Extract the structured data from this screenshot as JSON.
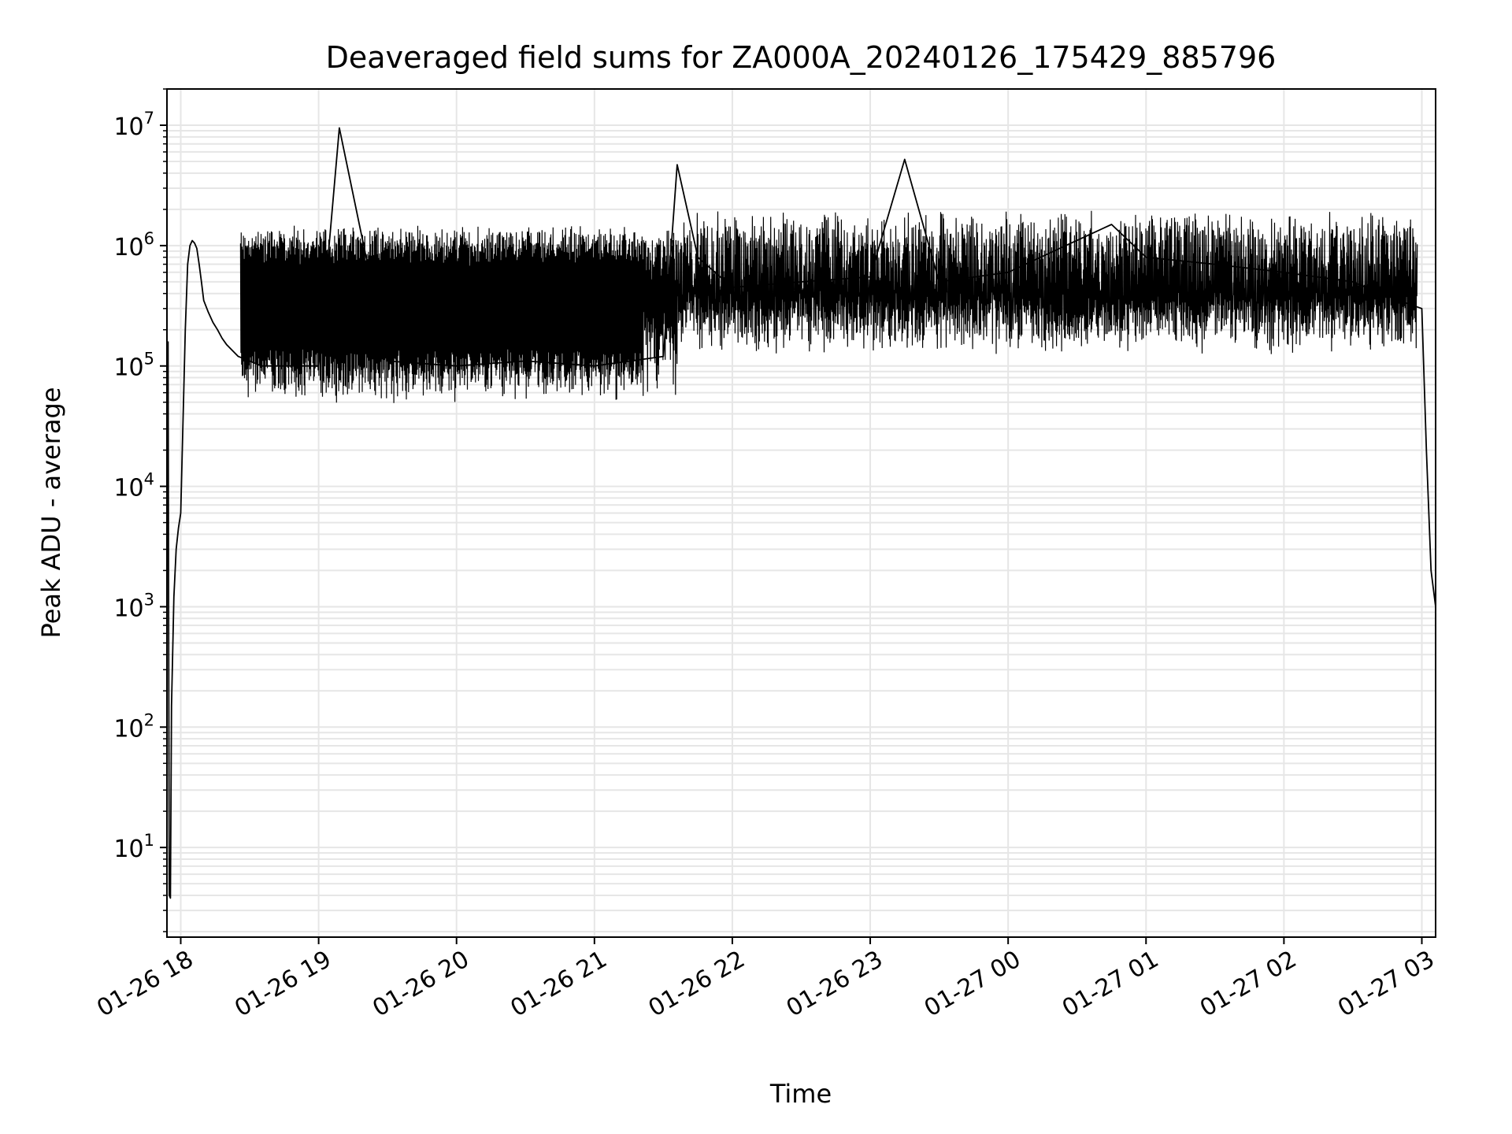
{
  "chart_data": {
    "type": "line",
    "title": "Deaveraged field sums for ZA000A_20240126_175429_885796",
    "xlabel": "Time",
    "ylabel": "Peak ADU - average",
    "yscale": "log",
    "xlim": [
      "2024-01-26 17:54",
      "2024-01-27 03:06"
    ],
    "ylim": [
      1.8,
      20000000.0
    ],
    "grid": true,
    "line_color": "#000000",
    "grid_color": "#e6e6e6",
    "x_ticks": [
      {
        "value": "2024-01-26 18:00",
        "label": "01-26 18"
      },
      {
        "value": "2024-01-26 19:00",
        "label": "01-26 19"
      },
      {
        "value": "2024-01-26 20:00",
        "label": "01-26 20"
      },
      {
        "value": "2024-01-26 21:00",
        "label": "01-26 21"
      },
      {
        "value": "2024-01-26 22:00",
        "label": "01-26 22"
      },
      {
        "value": "2024-01-26 23:00",
        "label": "01-26 23"
      },
      {
        "value": "2024-01-27 00:00",
        "label": "01-27 00"
      },
      {
        "value": "2024-01-27 01:00",
        "label": "01-27 01"
      },
      {
        "value": "2024-01-27 02:00",
        "label": "01-27 02"
      },
      {
        "value": "2024-01-27 03:00",
        "label": "01-27 03"
      }
    ],
    "y_ticks": [
      {
        "value": 10,
        "base": "10",
        "exp": "1"
      },
      {
        "value": 100,
        "base": "10",
        "exp": "2"
      },
      {
        "value": 1000,
        "base": "10",
        "exp": "3"
      },
      {
        "value": 10000,
        "base": "10",
        "exp": "4"
      },
      {
        "value": 100000,
        "base": "10",
        "exp": "5"
      },
      {
        "value": 1000000,
        "base": "10",
        "exp": "6"
      },
      {
        "value": 10000000,
        "base": "10",
        "exp": "7"
      }
    ],
    "series": [
      {
        "x": [
          "2024-01-26 17:54:29",
          "2024-01-26 17:55",
          "2024-01-26 17:55:30",
          "2024-01-26 17:56",
          "2024-01-26 17:57",
          "2024-01-26 17:58",
          "2024-01-26 17:59",
          "2024-01-26 18:00",
          "2024-01-26 18:02",
          "2024-01-26 18:03",
          "2024-01-26 18:04",
          "2024-01-26 18:05",
          "2024-01-26 18:06",
          "2024-01-26 18:07",
          "2024-01-26 18:08",
          "2024-01-26 18:09",
          "2024-01-26 18:10",
          "2024-01-26 18:12",
          "2024-01-26 18:14",
          "2024-01-26 18:16",
          "2024-01-26 18:18",
          "2024-01-26 18:20",
          "2024-01-26 18:25",
          "2024-01-26 18:30",
          "2024-01-26 18:35",
          "2024-01-26 19:00",
          "2024-01-26 19:09",
          "2024-01-26 19:30",
          "2024-01-26 20:00",
          "2024-01-26 20:30",
          "2024-01-26 21:00",
          "2024-01-26 21:30",
          "2024-01-26 21:36",
          "2024-01-26 21:45",
          "2024-01-26 22:00",
          "2024-01-26 22:30",
          "2024-01-26 23:00",
          "2024-01-26 23:15",
          "2024-01-26 23:30",
          "2024-01-27 00:00",
          "2024-01-27 00:25",
          "2024-01-27 00:45",
          "2024-01-27 01:00",
          "2024-01-27 01:30",
          "2024-01-27 02:00",
          "2024-01-27 02:30",
          "2024-01-27 02:50",
          "2024-01-27 03:00",
          "2024-01-27 03:02",
          "2024-01-27 03:04",
          "2024-01-27 03:06"
        ],
        "y": [
          160000,
          4,
          3.8,
          150,
          1200,
          3000,
          4500,
          6000,
          200000,
          700000,
          1000000,
          1100000,
          1050000,
          950000,
          700000,
          500000,
          350000,
          280000,
          230000,
          200000,
          170000,
          150000,
          120000,
          110000,
          100000,
          100000,
          9500000,
          110000,
          100000,
          110000,
          100000,
          120000,
          4700000,
          800000,
          450000,
          500000,
          550000,
          5200000,
          500000,
          600000,
          1000000,
          1500000,
          800000,
          700000,
          600000,
          500000,
          350000,
          300000,
          20000,
          2000,
          1000
        ]
      }
    ]
  }
}
